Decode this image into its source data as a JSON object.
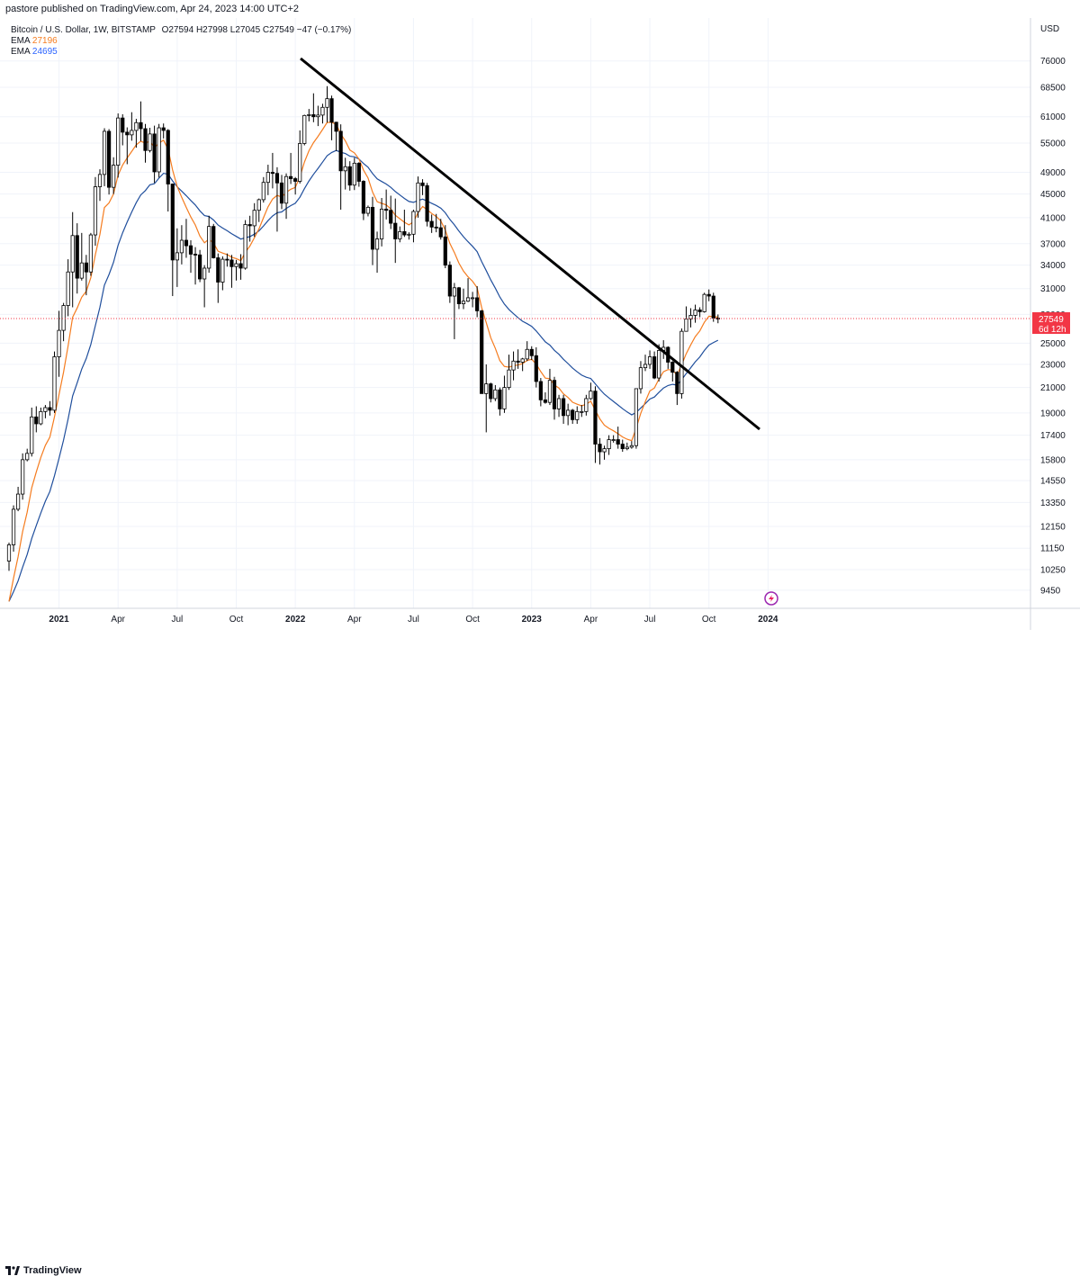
{
  "header": {
    "publisher_line": "pastore published on TradingView.com, Apr 24, 2023 14:00 UTC+2"
  },
  "legend": {
    "symbol": "Bitcoin / U.S. Dollar, 1W, BITSTAMP",
    "open": "O27594",
    "high": "H27998",
    "low": "L27045",
    "close": "C27549",
    "change": "−47 (−0.17%)",
    "ema1_label": "EMA",
    "ema1_value": "27196",
    "ema2_label": "EMA",
    "ema2_value": "24695"
  },
  "price_axis": {
    "currency": "USD",
    "last_price": "27549",
    "countdown": "6d 12h"
  },
  "footer": {
    "brand": "TradingView"
  },
  "colors": {
    "up": "#ffffff",
    "down": "#000000",
    "ema_fast": "#f57c1f",
    "ema_slow": "#1f4e9c",
    "price_label": "#f23645",
    "trendline": "#000000"
  },
  "chart_data": {
    "type": "candlestick",
    "y_scale": "log",
    "ylim": [
      8800,
      90000
    ],
    "x_tick_labels": [
      "2021",
      "Apr",
      "Jul",
      "Oct",
      "2022",
      "Apr",
      "Jul",
      "Oct",
      "2023",
      "Apr",
      "Jul",
      "Oct",
      "2024"
    ],
    "y_tick_labels": [
      76000,
      68500,
      61000,
      55000,
      49000,
      45000,
      41000,
      37000,
      34000,
      31000,
      28000,
      25000,
      23000,
      21000,
      19000,
      17400,
      15800,
      14550,
      13350,
      12150,
      11150,
      10250,
      9450
    ],
    "candles": [
      {
        "o": 10600,
        "h": 11400,
        "l": 10200,
        "c": 11300
      },
      {
        "o": 11300,
        "h": 13200,
        "l": 11000,
        "c": 13000
      },
      {
        "o": 13000,
        "h": 14200,
        "l": 12900,
        "c": 13800
      },
      {
        "o": 13800,
        "h": 16200,
        "l": 13500,
        "c": 15800
      },
      {
        "o": 15800,
        "h": 16500,
        "l": 15700,
        "c": 16200
      },
      {
        "o": 16200,
        "h": 19400,
        "l": 16000,
        "c": 18700
      },
      {
        "o": 18700,
        "h": 19500,
        "l": 17600,
        "c": 18200
      },
      {
        "o": 18200,
        "h": 19400,
        "l": 18100,
        "c": 19100
      },
      {
        "o": 19100,
        "h": 19600,
        "l": 18600,
        "c": 19400
      },
      {
        "o": 19400,
        "h": 19900,
        "l": 18800,
        "c": 19200
      },
      {
        "o": 19200,
        "h": 24200,
        "l": 19000,
        "c": 23700
      },
      {
        "o": 23700,
        "h": 28400,
        "l": 21900,
        "c": 26300
      },
      {
        "o": 26300,
        "h": 29300,
        "l": 25200,
        "c": 29000
      },
      {
        "o": 29000,
        "h": 34800,
        "l": 27800,
        "c": 33100
      },
      {
        "o": 33100,
        "h": 41900,
        "l": 28800,
        "c": 38200
      },
      {
        "o": 38200,
        "h": 40100,
        "l": 30400,
        "c": 32300
      },
      {
        "o": 32300,
        "h": 38600,
        "l": 32000,
        "c": 34300
      },
      {
        "o": 34300,
        "h": 35400,
        "l": 30200,
        "c": 33100
      },
      {
        "o": 33100,
        "h": 38600,
        "l": 32600,
        "c": 38300
      },
      {
        "o": 38300,
        "h": 48100,
        "l": 36700,
        "c": 46300
      },
      {
        "o": 46300,
        "h": 49600,
        "l": 43800,
        "c": 48600
      },
      {
        "o": 48600,
        "h": 58300,
        "l": 46400,
        "c": 57600
      },
      {
        "o": 57600,
        "h": 58100,
        "l": 44900,
        "c": 46200
      },
      {
        "o": 46200,
        "h": 52000,
        "l": 45000,
        "c": 50400
      },
      {
        "o": 50400,
        "h": 61800,
        "l": 48000,
        "c": 60700
      },
      {
        "o": 60700,
        "h": 61600,
        "l": 54500,
        "c": 57400
      },
      {
        "o": 57400,
        "h": 58500,
        "l": 50600,
        "c": 56800
      },
      {
        "o": 56800,
        "h": 62100,
        "l": 55500,
        "c": 57800
      },
      {
        "o": 57800,
        "h": 60500,
        "l": 54000,
        "c": 59600
      },
      {
        "o": 59600,
        "h": 64800,
        "l": 55400,
        "c": 58200
      },
      {
        "o": 58200,
        "h": 59300,
        "l": 50900,
        "c": 53400
      },
      {
        "o": 53400,
        "h": 58400,
        "l": 53000,
        "c": 57000
      },
      {
        "o": 57000,
        "h": 58900,
        "l": 47000,
        "c": 49100
      },
      {
        "o": 49100,
        "h": 59300,
        "l": 48000,
        "c": 58400
      },
      {
        "o": 58400,
        "h": 59400,
        "l": 56000,
        "c": 57800
      },
      {
        "o": 57800,
        "h": 58100,
        "l": 42000,
        "c": 46800
      },
      {
        "o": 46800,
        "h": 46900,
        "l": 30100,
        "c": 34700
      },
      {
        "o": 34700,
        "h": 39300,
        "l": 31200,
        "c": 35700
      },
      {
        "o": 35700,
        "h": 39800,
        "l": 34100,
        "c": 37500
      },
      {
        "o": 37500,
        "h": 40800,
        "l": 35000,
        "c": 36700
      },
      {
        "o": 36700,
        "h": 37500,
        "l": 33000,
        "c": 35500
      },
      {
        "o": 35500,
        "h": 36500,
        "l": 31500,
        "c": 35400
      },
      {
        "o": 35400,
        "h": 36100,
        "l": 31800,
        "c": 32200
      },
      {
        "o": 32200,
        "h": 34000,
        "l": 28800,
        "c": 33600
      },
      {
        "o": 33600,
        "h": 41300,
        "l": 33000,
        "c": 39600
      },
      {
        "o": 39600,
        "h": 40000,
        "l": 34900,
        "c": 35000
      },
      {
        "o": 35000,
        "h": 35600,
        "l": 29300,
        "c": 31800
      },
      {
        "o": 31800,
        "h": 35200,
        "l": 30800,
        "c": 34800
      },
      {
        "o": 34800,
        "h": 35600,
        "l": 33800,
        "c": 34700
      },
      {
        "o": 34700,
        "h": 35400,
        "l": 31100,
        "c": 33800
      },
      {
        "o": 33800,
        "h": 34700,
        "l": 32000,
        "c": 34200
      },
      {
        "o": 34200,
        "h": 35500,
        "l": 32100,
        "c": 33600
      },
      {
        "o": 33600,
        "h": 40600,
        "l": 33400,
        "c": 39900
      },
      {
        "o": 39900,
        "h": 41300,
        "l": 37300,
        "c": 39700
      },
      {
        "o": 39700,
        "h": 43400,
        "l": 38000,
        "c": 42200
      },
      {
        "o": 42200,
        "h": 44200,
        "l": 40300,
        "c": 44000
      },
      {
        "o": 44000,
        "h": 48100,
        "l": 43500,
        "c": 47100
      },
      {
        "o": 47100,
        "h": 50500,
        "l": 44800,
        "c": 49000
      },
      {
        "o": 49000,
        "h": 52900,
        "l": 46000,
        "c": 48800
      },
      {
        "o": 48800,
        "h": 50000,
        "l": 38800,
        "c": 47000
      },
      {
        "o": 47000,
        "h": 48500,
        "l": 42400,
        "c": 43400
      },
      {
        "o": 43400,
        "h": 48800,
        "l": 40800,
        "c": 48200
      },
      {
        "o": 48200,
        "h": 52900,
        "l": 46800,
        "c": 47800
      },
      {
        "o": 47800,
        "h": 48100,
        "l": 44900,
        "c": 47300
      },
      {
        "o": 47300,
        "h": 57800,
        "l": 46900,
        "c": 54900
      },
      {
        "o": 54900,
        "h": 61500,
        "l": 54500,
        "c": 61300
      },
      {
        "o": 61300,
        "h": 62900,
        "l": 59900,
        "c": 61500
      },
      {
        "o": 61500,
        "h": 66900,
        "l": 59700,
        "c": 61000
      },
      {
        "o": 61000,
        "h": 63700,
        "l": 58800,
        "c": 61400
      },
      {
        "o": 61400,
        "h": 64200,
        "l": 59400,
        "c": 63300
      },
      {
        "o": 63300,
        "h": 68800,
        "l": 59600,
        "c": 65500
      },
      {
        "o": 65500,
        "h": 66300,
        "l": 55600,
        "c": 59700
      },
      {
        "o": 59700,
        "h": 59800,
        "l": 53300,
        "c": 57600
      },
      {
        "o": 57600,
        "h": 59200,
        "l": 42300,
        "c": 49300
      },
      {
        "o": 49300,
        "h": 51900,
        "l": 45800,
        "c": 50100
      },
      {
        "o": 50100,
        "h": 51200,
        "l": 45600,
        "c": 46600
      },
      {
        "o": 46600,
        "h": 51900,
        "l": 45700,
        "c": 50800
      },
      {
        "o": 50800,
        "h": 51000,
        "l": 46300,
        "c": 47300
      },
      {
        "o": 47300,
        "h": 47500,
        "l": 40600,
        "c": 41700
      },
      {
        "o": 41700,
        "h": 43000,
        "l": 41200,
        "c": 42700
      },
      {
        "o": 42700,
        "h": 44500,
        "l": 34000,
        "c": 36200
      },
      {
        "o": 36200,
        "h": 38800,
        "l": 33000,
        "c": 37700
      },
      {
        "o": 37700,
        "h": 44300,
        "l": 36600,
        "c": 42400
      },
      {
        "o": 42400,
        "h": 45800,
        "l": 40700,
        "c": 42200
      },
      {
        "o": 42200,
        "h": 44700,
        "l": 39200,
        "c": 40100
      },
      {
        "o": 40100,
        "h": 44200,
        "l": 34300,
        "c": 37700
      },
      {
        "o": 37700,
        "h": 39600,
        "l": 37200,
        "c": 38800
      },
      {
        "o": 38800,
        "h": 42300,
        "l": 38000,
        "c": 38300
      },
      {
        "o": 38300,
        "h": 38700,
        "l": 37600,
        "c": 38400
      },
      {
        "o": 38400,
        "h": 42300,
        "l": 37200,
        "c": 42000
      },
      {
        "o": 42000,
        "h": 48200,
        "l": 41000,
        "c": 47000
      },
      {
        "o": 47000,
        "h": 47700,
        "l": 44800,
        "c": 46500
      },
      {
        "o": 46500,
        "h": 47000,
        "l": 39600,
        "c": 40400
      },
      {
        "o": 40400,
        "h": 41500,
        "l": 38600,
        "c": 39500
      },
      {
        "o": 39500,
        "h": 41600,
        "l": 38700,
        "c": 39400
      },
      {
        "o": 39400,
        "h": 40800,
        "l": 37600,
        "c": 38000
      },
      {
        "o": 38000,
        "h": 39800,
        "l": 33600,
        "c": 34000
      },
      {
        "o": 34000,
        "h": 34500,
        "l": 29300,
        "c": 30100
      },
      {
        "o": 30100,
        "h": 31700,
        "l": 25400,
        "c": 31100
      },
      {
        "o": 31100,
        "h": 31200,
        "l": 28600,
        "c": 29200
      },
      {
        "o": 29200,
        "h": 31000,
        "l": 28600,
        "c": 29500
      },
      {
        "o": 29500,
        "h": 32300,
        "l": 29400,
        "c": 29900
      },
      {
        "o": 29900,
        "h": 30600,
        "l": 28800,
        "c": 29900
      },
      {
        "o": 29900,
        "h": 31300,
        "l": 27700,
        "c": 28400
      },
      {
        "o": 28400,
        "h": 28500,
        "l": 20800,
        "c": 20500
      },
      {
        "o": 20500,
        "h": 23000,
        "l": 17600,
        "c": 21300
      },
      {
        "o": 21300,
        "h": 21400,
        "l": 19800,
        "c": 20100
      },
      {
        "o": 20100,
        "h": 21200,
        "l": 19900,
        "c": 20800
      },
      {
        "o": 20800,
        "h": 21000,
        "l": 18800,
        "c": 19300
      },
      {
        "o": 19300,
        "h": 22000,
        "l": 19000,
        "c": 21000
      },
      {
        "o": 21000,
        "h": 23900,
        "l": 20800,
        "c": 22500
      },
      {
        "o": 22500,
        "h": 24200,
        "l": 21600,
        "c": 23300
      },
      {
        "o": 23300,
        "h": 24400,
        "l": 22600,
        "c": 23200
      },
      {
        "o": 23200,
        "h": 23600,
        "l": 22400,
        "c": 23500
      },
      {
        "o": 23500,
        "h": 25200,
        "l": 23300,
        "c": 24400
      },
      {
        "o": 24400,
        "h": 24700,
        "l": 23400,
        "c": 23800
      },
      {
        "o": 23800,
        "h": 24600,
        "l": 21000,
        "c": 21500
      },
      {
        "o": 21500,
        "h": 21800,
        "l": 19500,
        "c": 20000
      },
      {
        "o": 20000,
        "h": 20600,
        "l": 19700,
        "c": 19800
      },
      {
        "o": 19800,
        "h": 22600,
        "l": 19600,
        "c": 21600
      },
      {
        "o": 21600,
        "h": 21900,
        "l": 18500,
        "c": 19300
      },
      {
        "o": 19300,
        "h": 20400,
        "l": 18700,
        "c": 20100
      },
      {
        "o": 20100,
        "h": 20400,
        "l": 18200,
        "c": 18800
      },
      {
        "o": 18800,
        "h": 19700,
        "l": 18100,
        "c": 19200
      },
      {
        "o": 19200,
        "h": 19300,
        "l": 18200,
        "c": 18500
      },
      {
        "o": 18500,
        "h": 19500,
        "l": 18200,
        "c": 19100
      },
      {
        "o": 19100,
        "h": 19600,
        "l": 18700,
        "c": 19100
      },
      {
        "o": 19100,
        "h": 20400,
        "l": 18800,
        "c": 20100
      },
      {
        "o": 20100,
        "h": 21400,
        "l": 20000,
        "c": 20700
      },
      {
        "o": 20700,
        "h": 21100,
        "l": 15600,
        "c": 16800
      },
      {
        "o": 16800,
        "h": 17200,
        "l": 15500,
        "c": 16300
      },
      {
        "o": 16300,
        "h": 16700,
        "l": 15800,
        "c": 16500
      },
      {
        "o": 16500,
        "h": 17400,
        "l": 16100,
        "c": 17100
      },
      {
        "o": 17100,
        "h": 17400,
        "l": 16900,
        "c": 17100
      },
      {
        "o": 17100,
        "h": 18000,
        "l": 16500,
        "c": 16800
      },
      {
        "o": 16800,
        "h": 17100,
        "l": 16300,
        "c": 16500
      },
      {
        "o": 16500,
        "h": 16900,
        "l": 16400,
        "c": 16600
      },
      {
        "o": 16600,
        "h": 17000,
        "l": 16500,
        "c": 16700
      },
      {
        "o": 16700,
        "h": 20900,
        "l": 16500,
        "c": 20900
      },
      {
        "o": 20900,
        "h": 23300,
        "l": 20500,
        "c": 22700
      },
      {
        "o": 22700,
        "h": 23900,
        "l": 22400,
        "c": 23000
      },
      {
        "o": 23000,
        "h": 24300,
        "l": 22600,
        "c": 23700
      },
      {
        "o": 23700,
        "h": 24200,
        "l": 21700,
        "c": 21800
      },
      {
        "o": 21800,
        "h": 24900,
        "l": 21500,
        "c": 24300
      },
      {
        "o": 24300,
        "h": 25300,
        "l": 23500,
        "c": 24600
      },
      {
        "o": 24600,
        "h": 24700,
        "l": 22600,
        "c": 23200
      },
      {
        "o": 23200,
        "h": 23300,
        "l": 21500,
        "c": 22300
      },
      {
        "o": 22300,
        "h": 22400,
        "l": 19600,
        "c": 20500
      },
      {
        "o": 20500,
        "h": 26500,
        "l": 20100,
        "c": 26200
      },
      {
        "o": 26200,
        "h": 28900,
        "l": 26200,
        "c": 27500
      },
      {
        "o": 27500,
        "h": 28700,
        "l": 26600,
        "c": 27900
      },
      {
        "o": 27900,
        "h": 29100,
        "l": 27100,
        "c": 28500
      },
      {
        "o": 28500,
        "h": 28800,
        "l": 27700,
        "c": 28300
      },
      {
        "o": 28300,
        "h": 30500,
        "l": 28200,
        "c": 30300
      },
      {
        "o": 30300,
        "h": 30900,
        "l": 29500,
        "c": 30100
      },
      {
        "o": 30100,
        "h": 30500,
        "l": 27200,
        "c": 27600
      },
      {
        "o": 27594,
        "h": 27998,
        "l": 27045,
        "c": 27549
      }
    ],
    "ema_fast_last": 27196,
    "ema_slow_last": 24695
  }
}
